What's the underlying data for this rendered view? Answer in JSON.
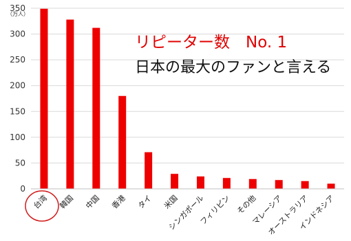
{
  "headline": {
    "red": "リピーター数　No. 1",
    "black": "日本の最大のファンと言える"
  },
  "chart_data": {
    "type": "bar",
    "unit": "（万人）",
    "categories": [
      "台湾",
      "韓国",
      "中国",
      "香港",
      "タイ",
      "米国",
      "シンガポール",
      "フィリピン",
      "その他",
      "マレーシア",
      "オーストラリア",
      "インドネシア"
    ],
    "values": [
      349,
      328,
      312,
      180,
      71,
      29,
      24,
      21,
      19,
      17,
      15,
      10
    ],
    "yticks": [
      0,
      50,
      100,
      150,
      200,
      250,
      300,
      350
    ],
    "ylim": [
      0,
      350
    ],
    "grid": true,
    "highlight_category": "台湾",
    "colors": {
      "bar": "#ee0000",
      "highlight_ring": "#d11a1a",
      "grid": "#d9d9d9",
      "axis": "#bfbfbf"
    }
  }
}
